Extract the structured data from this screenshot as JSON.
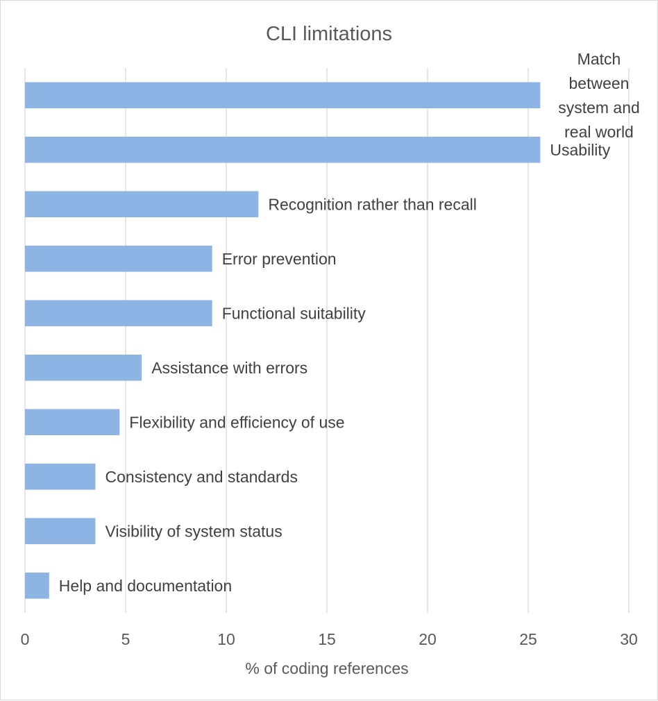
{
  "chart_data": {
    "type": "bar",
    "orientation": "horizontal",
    "title": "CLI limitations",
    "xlabel": "% of coding references",
    "ylabel": "",
    "xlim": [
      0,
      30
    ],
    "xticks": [
      0,
      5,
      10,
      15,
      20,
      25,
      30
    ],
    "grid": true,
    "legend": "none",
    "bar_color": "#8EB4E3",
    "categories": [
      "Match between system and real world",
      "Usability",
      "Recognition rather than recall",
      "Error prevention",
      "Functional suitability",
      "Assistance with errors",
      "Flexibility and efficiency of use",
      "Consistency and standards",
      "Visibility of system status",
      "Help and documentation"
    ],
    "label_lines": [
      [
        "Match",
        "between",
        "system and",
        "real world"
      ],
      [
        "Usability"
      ],
      [
        "Recognition rather than recall"
      ],
      [
        "Error prevention"
      ],
      [
        "Functional suitability"
      ],
      [
        "Assistance with errors"
      ],
      [
        "Flexibility and efficiency of use"
      ],
      [
        "Consistency and standards"
      ],
      [
        "Visibility of system status"
      ],
      [
        "Help and documentation"
      ]
    ],
    "values": [
      25.6,
      25.6,
      11.6,
      9.3,
      9.3,
      5.8,
      4.7,
      3.5,
      3.5,
      1.2
    ]
  }
}
